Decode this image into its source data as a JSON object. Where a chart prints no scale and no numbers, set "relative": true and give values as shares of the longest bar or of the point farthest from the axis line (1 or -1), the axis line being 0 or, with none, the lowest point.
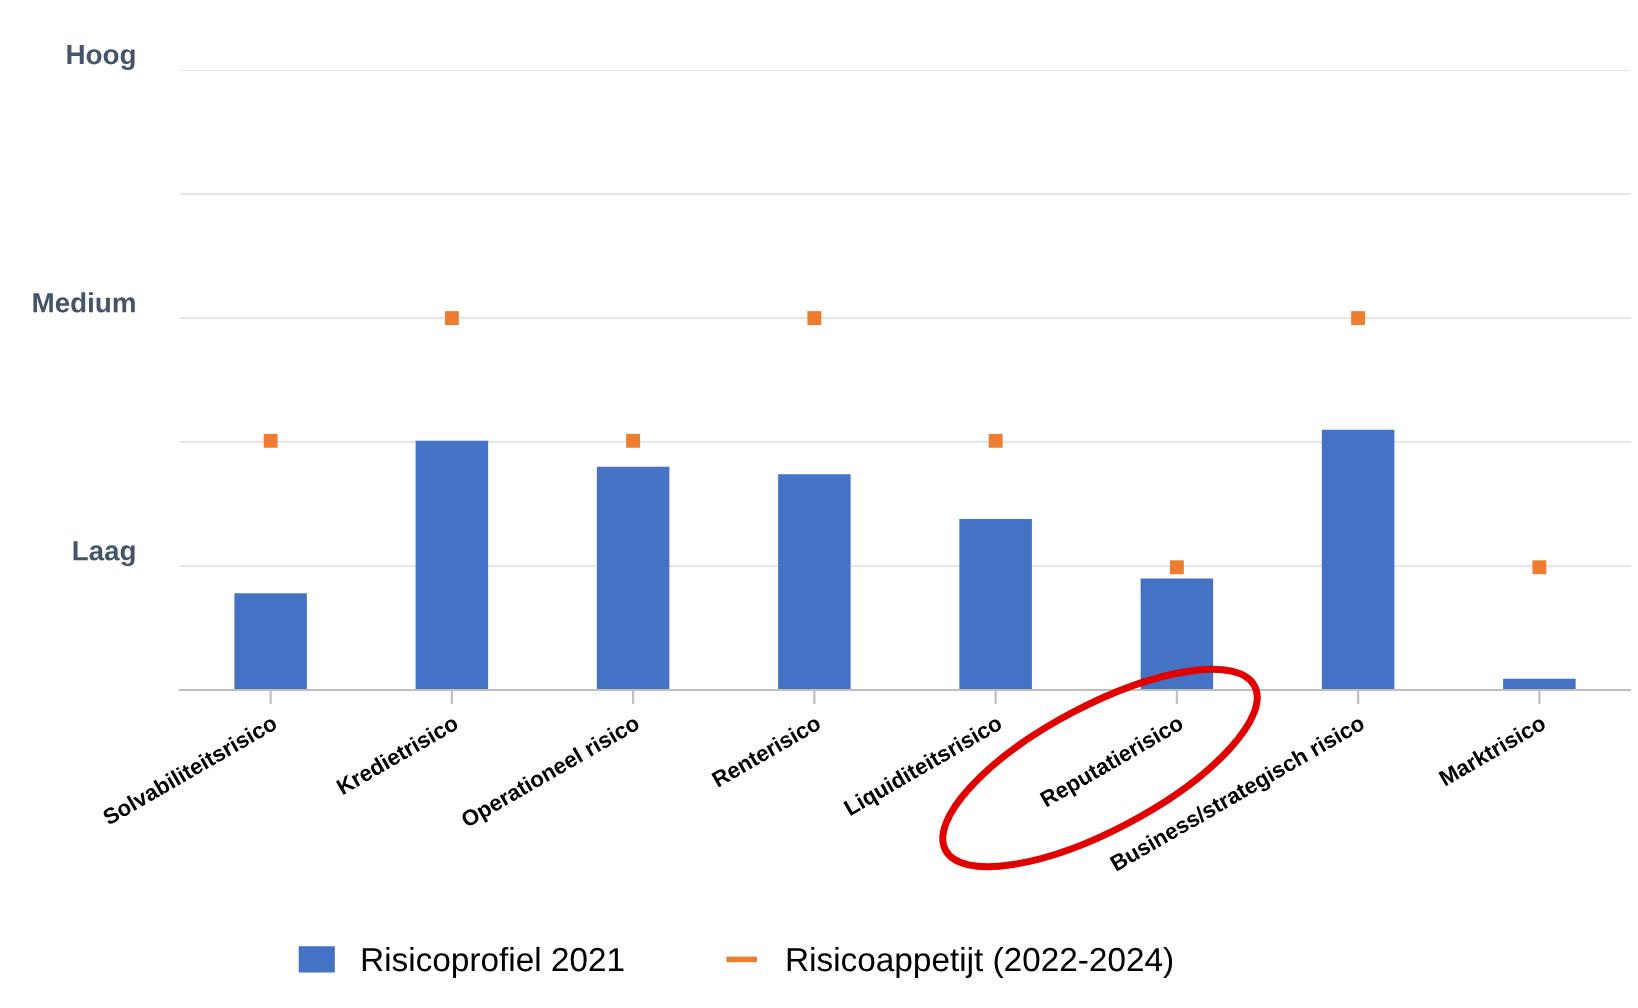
{
  "chart_data": {
    "type": "bar",
    "relative": true,
    "categories": [
      "Solvabiliteitsrisico",
      "Kredietrisico",
      "Operationeel risico",
      "Renterisico",
      "Liquiditeitsrisico",
      "Reputatierisico",
      "Business/strategisch risico",
      "Marktrisico"
    ],
    "series": [
      {
        "name": "Risicoprofiel 2021",
        "color": "#4472c4",
        "values": [
          0.26,
          0.67,
          0.6,
          0.58,
          0.46,
          0.3,
          0.7,
          0.03
        ]
      },
      {
        "name": "Risicoappetijt (2022-2024)",
        "type": "scatter",
        "color": "#ed7d31",
        "x": [
          "Solvabiliteitsrisico",
          "Kredietrisico",
          "Operationeel risico",
          "Renterisico",
          "Liquiditeitsrisico",
          "Reputatierisico",
          "Business/strategisch risico",
          "Marktrisico"
        ],
        "values": [
          0.67,
          1,
          0.67,
          1,
          0.67,
          0.33,
          1,
          0.33
        ]
      }
    ],
    "ref_lines": [
      {
        "axis": "y",
        "value": 0.333,
        "label": "Laag",
        "color": "#e6e6e6"
      },
      {
        "axis": "y",
        "value": 0.667,
        "label": null,
        "color": "#e6e6e6"
      },
      {
        "axis": "y",
        "value": 1,
        "label": "Medium",
        "color": "#e6e6e6"
      },
      {
        "axis": "y",
        "value": 1.333,
        "label": null,
        "color": "#e6e6e6"
      },
      {
        "axis": "y",
        "value": 1.667,
        "label": "Hoog",
        "color": "#e6e6e6"
      }
    ],
    "legend": "bottom"
  }
}
